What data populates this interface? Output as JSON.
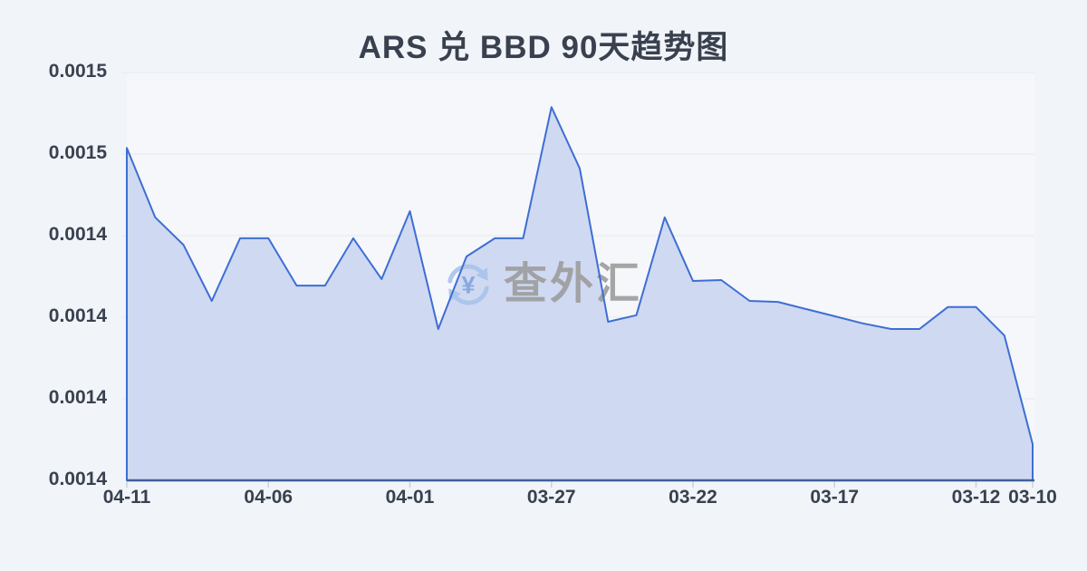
{
  "chart_data": {
    "type": "area",
    "title": "ARS 兑 BBD 90天趋势图",
    "categories": [
      "04-11",
      "04-10",
      "04-09",
      "04-08",
      "04-07",
      "04-06",
      "04-05",
      "04-04",
      "04-03",
      "04-02",
      "04-01",
      "03-31",
      "03-30",
      "03-29",
      "03-28",
      "03-27",
      "03-26",
      "03-25",
      "03-24",
      "03-23",
      "03-22",
      "03-21",
      "03-20",
      "03-19",
      "03-18",
      "03-17",
      "03-16",
      "03-15",
      "03-14",
      "03-13",
      "03-12",
      "03-11",
      "03-10"
    ],
    "values": [
      0.0014769,
      0.0014556,
      0.0014472,
      0.00143,
      0.0014492,
      0.0014492,
      0.0014347,
      0.0014347,
      0.0014492,
      0.0014367,
      0.0014575,
      0.0014214,
      0.0014436,
      0.0014492,
      0.0014492,
      0.0014894,
      0.0014706,
      0.0014236,
      0.0014256,
      0.0014556,
      0.0014361,
      0.0014364,
      0.00143,
      0.0014297,
      0.0014275,
      0.0014253,
      0.0014231,
      0.0014214,
      0.0014214,
      0.0014281,
      0.0014281,
      0.0014194,
      0.0013861
    ],
    "x_tick_labels": [
      "04-11",
      "04-06",
      "04-01",
      "03-27",
      "03-22",
      "03-17",
      "03-12",
      "03-10"
    ],
    "y_tick_labels": [
      "0.0015",
      "0.0015",
      "0.0014",
      "0.0014",
      "0.0014",
      "0.0014"
    ],
    "ylim": [
      0.001375,
      0.0015
    ],
    "xlabel": "",
    "ylabel": "",
    "grid": true,
    "legend": "none"
  },
  "watermark": {
    "icon": "currency-exchange-icon",
    "icon_symbol": "¥",
    "text": "查外汇"
  },
  "colors": {
    "background": "#f1f4f8",
    "plot_background": "#f6f7fa",
    "line": "#3e6ed4",
    "fill": "#cfd9f1",
    "axis": "#3f5f9e",
    "gridline": "#e8eaee",
    "tick": "#cdd1d9",
    "label_text": "#394150",
    "watermark_text": "#9d9d9d",
    "watermark_icon": "#a9c3ec",
    "watermark_symbol": "#7fa4de"
  }
}
